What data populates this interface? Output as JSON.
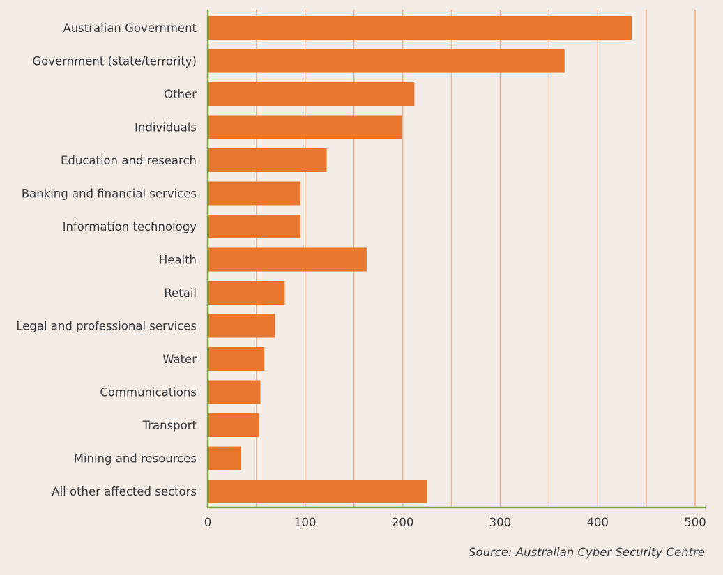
{
  "colors": {
    "background": "#f3ece7",
    "bar": "#e8762c",
    "gridline": "#f2b48a",
    "axis": "#7fa63a",
    "text": "#3a3a3a"
  },
  "source": "Source: Australian Cyber Security Centre",
  "chart_data": {
    "type": "bar",
    "orientation": "horizontal",
    "categories": [
      "Australian Government",
      "Government (state/terrority)",
      "Other",
      "Individuals",
      "Education and research",
      "Banking and financial services",
      "Information technology",
      "Health",
      "Retail",
      "Legal and professional services",
      "Water",
      "Communications",
      "Transport",
      "Mining and resources",
      "All other affected sectors"
    ],
    "values": [
      435,
      366,
      212,
      199,
      122,
      95,
      95,
      163,
      79,
      69,
      58,
      54,
      53,
      34,
      225
    ],
    "xlim": [
      0,
      500
    ],
    "xticks": [
      0,
      100,
      200,
      300,
      400,
      500
    ],
    "gridlines": [
      50,
      100,
      150,
      200,
      250,
      300,
      350,
      400,
      450,
      500
    ],
    "grid": true,
    "legend": "none"
  }
}
